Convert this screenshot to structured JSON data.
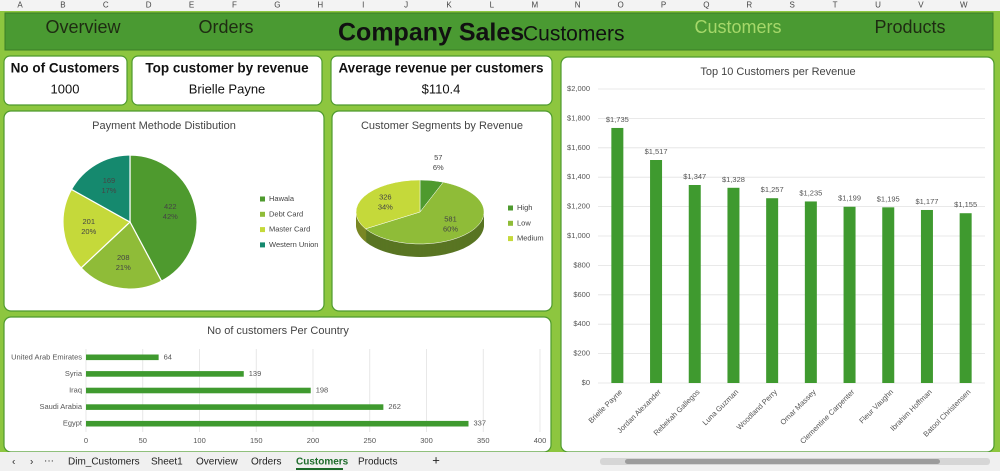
{
  "columns": [
    "A",
    "B",
    "C",
    "D",
    "E",
    "F",
    "G",
    "H",
    "I",
    "J",
    "K",
    "L",
    "M",
    "N",
    "O",
    "P",
    "Q",
    "R",
    "S",
    "T",
    "U",
    "V",
    "W"
  ],
  "nav": {
    "items": [
      "Overview",
      "Orders",
      "Customers",
      "Products"
    ],
    "title": "Company Sales",
    "subtitle": "Customers"
  },
  "kpis": [
    {
      "label": "No of Customers",
      "value": 1000
    },
    {
      "label": "Top customer by revenue",
      "value": "Brielle Payne"
    },
    {
      "label": "Average revenue per customers",
      "value": "$110.4"
    }
  ],
  "chart_data": [
    {
      "type": "pie",
      "title": "Payment Methode Distibution",
      "categories": [
        "Hawala",
        "Debt Card",
        "Master Card",
        "Western Union"
      ],
      "values": [
        422,
        208,
        201,
        169
      ],
      "percent_labels": [
        "42%",
        "21%",
        "20%",
        "17%"
      ],
      "colors": [
        "#4e9a2e",
        "#8fbc38",
        "#c5d93a",
        "#15896e"
      ],
      "legend": "right"
    },
    {
      "type": "pie3d",
      "title": "Customer Segments by Revenue",
      "categories": [
        "High",
        "Low",
        "Medium"
      ],
      "values": [
        57,
        581,
        326
      ],
      "percent_labels": [
        "6%",
        "60%",
        "34%"
      ],
      "colors": [
        "#4e9a2e",
        "#8fbc38",
        "#c5d93a"
      ],
      "legend": "right"
    },
    {
      "type": "barh",
      "title": "No of customers Per Country",
      "categories": [
        "United Arab Emirates",
        "Syria",
        "Iraq",
        "Saudi Arabia",
        "Egypt"
      ],
      "values": [
        64,
        139,
        198,
        262,
        337
      ],
      "color": "#3f9a2f",
      "xlim": [
        0,
        400
      ],
      "xticks": [
        0,
        50,
        100,
        150,
        200,
        250,
        300,
        350,
        400
      ],
      "grid": true
    },
    {
      "type": "bar",
      "title": "Top 10 Customers per Revenue",
      "categories": [
        "Brielle Payne",
        "Jordan Alexander",
        "Rebekah Gallegos",
        "Luna Guzman",
        "Woodland Perry",
        "Omar Massey",
        "Clementine Carpenter",
        "Fleur Vaughn",
        "Ibrahim Hoffman",
        "Batool Christensen"
      ],
      "values": [
        1735,
        1517,
        1347,
        1328,
        1257,
        1235,
        1199,
        1195,
        1177,
        1155
      ],
      "value_labels": [
        "$1,735",
        "$1,517",
        "$1,347",
        "$1,328",
        "$1,257",
        "$1,235",
        "$1,199",
        "$1,195",
        "$1,177",
        "$1,155"
      ],
      "color": "#3f9a2f",
      "ylim": [
        0,
        2000
      ],
      "yticks": [
        {
          "value": 0,
          "label": "$0"
        },
        {
          "value": 200,
          "label": "$200"
        },
        {
          "value": 400,
          "label": "$400"
        },
        {
          "value": 600,
          "label": "$600"
        },
        {
          "value": 800,
          "label": "$800"
        },
        {
          "value": 1000,
          "label": "$1,000"
        },
        {
          "value": 1200,
          "label": "$1,200"
        },
        {
          "value": 1400,
          "label": "$1,400"
        },
        {
          "value": 1600,
          "label": "$1,600"
        },
        {
          "value": 1800,
          "label": "$1,800"
        },
        {
          "value": 2000,
          "label": "$2,000"
        }
      ],
      "grid": true
    }
  ],
  "sheet_tabs": [
    "Dim_Customers",
    "Sheet1",
    "Overview",
    "Orders",
    "Customers",
    "Products"
  ]
}
